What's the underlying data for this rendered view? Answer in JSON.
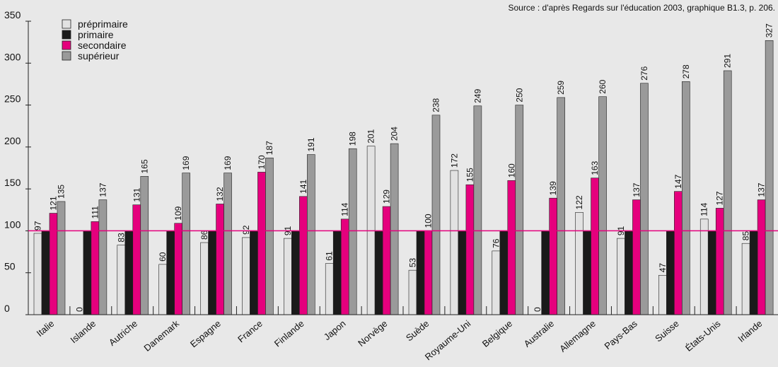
{
  "chart_data": {
    "type": "bar",
    "source": "Source : d'après Regards sur l'éducation 2003, graphique B1.3, p. 206.",
    "categories": [
      "Italie",
      "Islande",
      "Autriche",
      "Danemark",
      "Espagne",
      "France",
      "Finlande",
      "Japon",
      "Norvège",
      "Suède",
      "Royaume-Uni",
      "Belgique",
      "Australie",
      "Allemagne",
      "Pays-Bas",
      "Suisse",
      "États-Unis",
      "Irlande"
    ],
    "series": [
      {
        "name": "préprimaire",
        "color": "#e2e2e2",
        "values": [
          97,
          0,
          83,
          60,
          86,
          92,
          91,
          61,
          201,
          53,
          172,
          76,
          0,
          122,
          91,
          47,
          114,
          85
        ]
      },
      {
        "name": "primaire",
        "color": "#1a1a1a",
        "data_labels": false,
        "values": [
          100,
          100,
          100,
          100,
          100,
          100,
          100,
          100,
          100,
          100,
          100,
          100,
          100,
          100,
          100,
          100,
          100,
          100
        ]
      },
      {
        "name": "secondaire",
        "color": "#e5007d",
        "values": [
          121,
          111,
          131,
          109,
          132,
          170,
          141,
          114,
          129,
          100,
          155,
          160,
          139,
          163,
          137,
          147,
          127,
          137
        ]
      },
      {
        "name": "supérieur",
        "color": "#9a9a9a",
        "values": [
          135,
          137,
          165,
          169,
          169,
          187,
          191,
          198,
          204,
          238,
          249,
          250,
          259,
          260,
          276,
          278,
          291,
          327
        ]
      }
    ],
    "reference_line": {
      "value": 100,
      "color": "#e5007d"
    },
    "ylim": [
      0,
      350
    ],
    "yticks": [
      0,
      50,
      100,
      150,
      200,
      250,
      300,
      350
    ],
    "grid": false
  }
}
